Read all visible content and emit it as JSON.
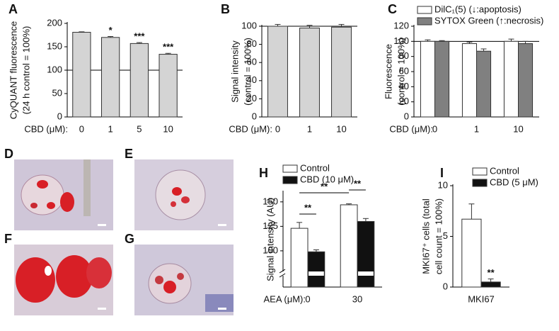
{
  "chart_data": [
    {
      "type": "bar",
      "panel": "A",
      "ylabel": [
        "CyQUANT fluorescence",
        "(24 h control = 100%)"
      ],
      "xlabel": "CBD (μM):",
      "categories": [
        "0",
        "1",
        "5",
        "10"
      ],
      "series": [
        {
          "color": "#d4d4d4",
          "values": [
            181,
            170,
            157,
            134
          ],
          "errors": [
            1,
            2,
            2,
            2
          ],
          "sig": [
            null,
            "*",
            "***",
            "***"
          ]
        }
      ],
      "ylim": [
        0,
        200
      ],
      "yticks": [
        0,
        50,
        100,
        150,
        200
      ],
      "hline": 100
    },
    {
      "type": "bar",
      "panel": "B",
      "ylabel": [
        "Signal intensity",
        "(control = 100%)"
      ],
      "xlabel": "CBD (μM):",
      "categories": [
        "0",
        "1",
        "10"
      ],
      "series": [
        {
          "color": "#d4d4d4",
          "values": [
            100,
            98,
            99
          ],
          "errors": [
            2,
            3,
            3
          ]
        }
      ],
      "ylim": [
        0,
        100
      ],
      "yticks": [
        0,
        20,
        40,
        60,
        80,
        100
      ],
      "hline": 100
    },
    {
      "type": "bar",
      "panel": "C",
      "ylabel": [
        "Fluorescence",
        "(control = 100%)"
      ],
      "xlabel": "CBD (μM):",
      "categories": [
        "0",
        "1",
        "10"
      ],
      "series": [
        {
          "name": "DilC₁(5) (↓:apoptosis)",
          "color": "#ffffff",
          "values": [
            100,
            97,
            100
          ],
          "errors": [
            2,
            2,
            3
          ]
        },
        {
          "name": "SYTOX Green (↑:necrosis)",
          "color": "#808080",
          "values": [
            100,
            87,
            97
          ],
          "errors": [
            1,
            3,
            3
          ]
        }
      ],
      "ylim": [
        0,
        120
      ],
      "yticks": [
        0,
        20,
        40,
        60,
        80,
        100,
        120
      ],
      "hline": 100
    },
    {
      "type": "bar",
      "panel": "H",
      "ylabel": [
        "Signal intensity (AU)"
      ],
      "xlabel": "AEA (μM):",
      "categories": [
        "0",
        "30"
      ],
      "series": [
        {
          "name": "Control",
          "color": "#ffffff",
          "values": [
            123,
            147
          ],
          "errors": [
            6,
            1
          ]
        },
        {
          "name": "CBD (10 μM)",
          "color": "#111111",
          "values": [
            99,
            130
          ],
          "errors": [
            2,
            3
          ]
        }
      ],
      "ylim": [
        63,
        160
      ],
      "yticks": [
        100,
        125,
        150
      ],
      "axis_break": true,
      "brackets": [
        "**",
        "**",
        "**"
      ]
    },
    {
      "type": "bar",
      "panel": "I",
      "ylabel": [
        "MKI67⁺ cells (total",
        "cell count = 100%)"
      ],
      "categories": [
        "MKI67"
      ],
      "series": [
        {
          "name": "Control",
          "color": "#ffffff",
          "values": [
            6.7
          ],
          "errors": [
            1.5
          ]
        },
        {
          "name": "CBD (5 μM)",
          "color": "#111111",
          "values": [
            0.5
          ],
          "errors": [
            0.3
          ],
          "sig": [
            "**"
          ]
        }
      ],
      "ylim": [
        0,
        10
      ],
      "yticks": [
        0,
        5,
        10
      ]
    }
  ],
  "image_panels": [
    "D",
    "E",
    "F",
    "G"
  ]
}
